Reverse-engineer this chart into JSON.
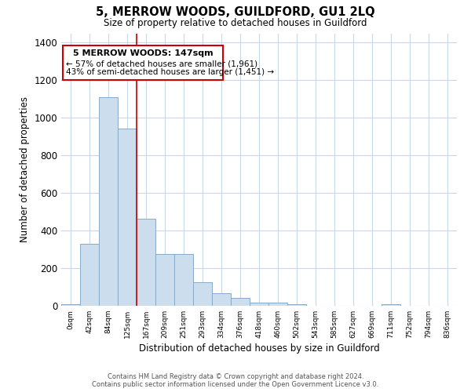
{
  "title": "5, MERROW WOODS, GUILDFORD, GU1 2LQ",
  "subtitle": "Size of property relative to detached houses in Guildford",
  "xlabel": "Distribution of detached houses by size in Guildford",
  "ylabel": "Number of detached properties",
  "bar_color": "#ccdded",
  "bar_edge_color": "#88aac8",
  "marker_line_color": "#cc0000",
  "background_color": "#ffffff",
  "grid_color": "#c8d8e8",
  "bin_labels": [
    "0sqm",
    "42sqm",
    "84sqm",
    "125sqm",
    "167sqm",
    "209sqm",
    "251sqm",
    "293sqm",
    "334sqm",
    "376sqm",
    "418sqm",
    "460sqm",
    "502sqm",
    "543sqm",
    "585sqm",
    "627sqm",
    "669sqm",
    "711sqm",
    "752sqm",
    "794sqm",
    "836sqm"
  ],
  "bar_values": [
    10,
    328,
    1110,
    945,
    465,
    275,
    275,
    125,
    68,
    43,
    18,
    18,
    10,
    0,
    0,
    0,
    0,
    10,
    0,
    0,
    0
  ],
  "ylim": [
    0,
    1450
  ],
  "yticks": [
    0,
    200,
    400,
    600,
    800,
    1000,
    1200,
    1400
  ],
  "marker_bin_index": 3,
  "annotation_title": "5 MERROW WOODS: 147sqm",
  "annotation_line1": "← 57% of detached houses are smaller (1,961)",
  "annotation_line2": "43% of semi-detached houses are larger (1,451) →",
  "footer_line1": "Contains HM Land Registry data © Crown copyright and database right 2024.",
  "footer_line2": "Contains public sector information licensed under the Open Government Licence v3.0."
}
